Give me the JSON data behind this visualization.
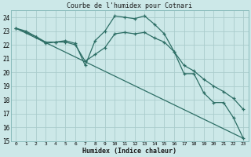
{
  "title": "Courbe de l'humidex pour Cotnari",
  "xlabel": "Humidex (Indice chaleur)",
  "xlim": [
    -0.5,
    23.5
  ],
  "ylim": [
    15,
    24.5
  ],
  "yticks": [
    15,
    16,
    17,
    18,
    19,
    20,
    21,
    22,
    23,
    24
  ],
  "xticks": [
    0,
    1,
    2,
    3,
    4,
    5,
    6,
    7,
    8,
    9,
    10,
    11,
    12,
    13,
    14,
    15,
    16,
    17,
    18,
    19,
    20,
    21,
    22,
    23
  ],
  "bg_color": "#cce8e8",
  "grid_color": "#aacccc",
  "line_color": "#2d6e65",
  "line1_x": [
    0,
    1,
    2,
    3,
    4,
    5,
    6,
    7,
    8,
    9,
    10,
    11,
    12,
    13,
    14,
    15,
    16,
    17,
    18,
    19,
    20,
    21,
    22,
    23
  ],
  "line1_y": [
    23.2,
    22.9,
    22.6,
    22.1,
    22.2,
    22.3,
    22.1,
    20.5,
    22.3,
    23.0,
    24.1,
    24.0,
    23.9,
    24.1,
    23.5,
    22.8,
    21.5,
    19.9,
    19.9,
    18.5,
    17.8,
    17.8,
    16.7,
    15.2
  ],
  "line2_x": [
    0,
    1,
    2,
    3,
    4,
    5,
    6,
    7,
    8,
    9,
    10,
    11,
    12,
    13,
    14,
    15,
    16,
    17,
    18,
    19,
    20,
    21,
    22,
    23
  ],
  "line2_y": [
    23.2,
    23.0,
    22.6,
    22.2,
    22.2,
    22.2,
    22.0,
    20.8,
    21.3,
    21.8,
    22.8,
    22.9,
    22.8,
    22.9,
    22.5,
    22.2,
    21.5,
    20.5,
    20.1,
    19.5,
    19.0,
    18.6,
    18.1,
    17.3
  ],
  "line3_x": [
    0,
    23
  ],
  "line3_y": [
    23.2,
    15.2
  ]
}
